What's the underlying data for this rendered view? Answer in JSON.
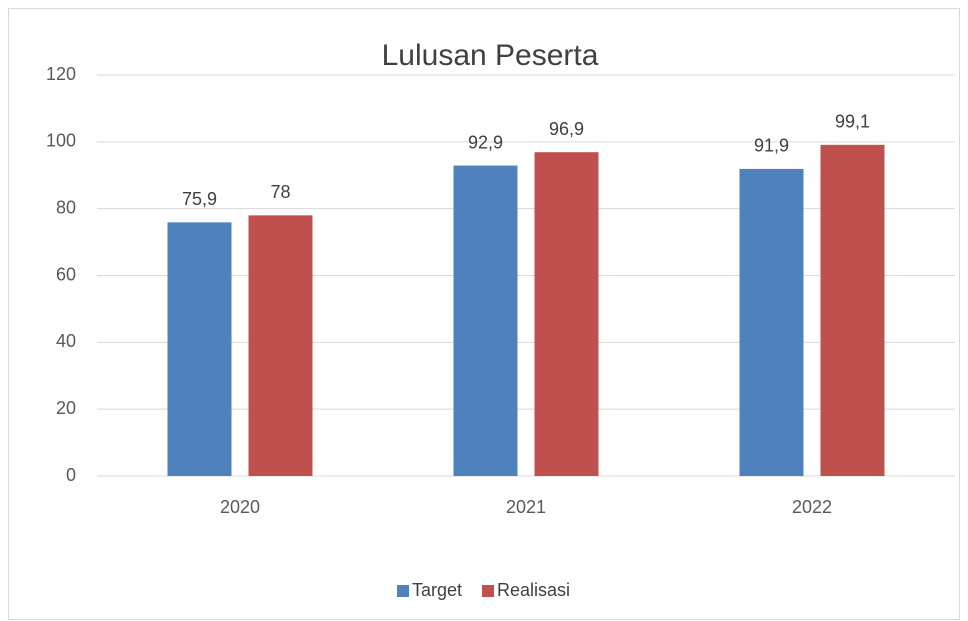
{
  "chart_data": {
    "type": "bar",
    "title": "Lulusan Peserta",
    "categories": [
      "2020",
      "2021",
      "2022"
    ],
    "series": [
      {
        "name": "Target",
        "color": "#4f81bd",
        "values": [
          75.9,
          92.9,
          91.9
        ],
        "value_labels": [
          "75,9",
          "92,9",
          "91,9"
        ]
      },
      {
        "name": "Realisasi",
        "color": "#c0504d",
        "values": [
          78,
          96.9,
          99.1
        ],
        "value_labels": [
          "78",
          "96,9",
          "99,1"
        ]
      }
    ],
    "ylim": [
      0,
      120
    ],
    "yticks": [
      0,
      20,
      40,
      60,
      80,
      100,
      120
    ],
    "grid": true,
    "legend": "bottom"
  }
}
